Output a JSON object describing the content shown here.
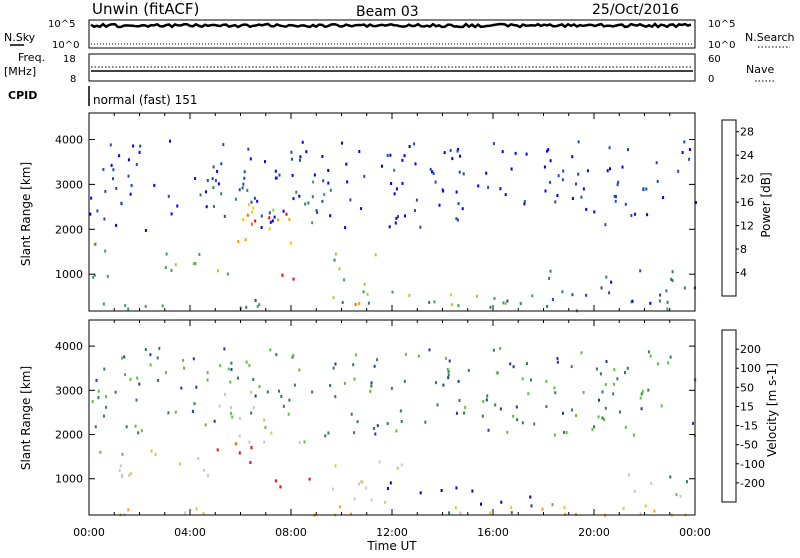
{
  "header": {
    "station": "Unwin (fitACF)",
    "beam": "Beam 03",
    "date": "25/Oct/2016"
  },
  "top_panels": {
    "nsky_label": "N.Sky",
    "nsearch_label": "N.Search",
    "noise_ticks_left": [
      "10^5",
      "10^0"
    ],
    "noise_ticks_right": [
      "10^5",
      "10^0"
    ],
    "freq_label_1": "Freq.",
    "freq_label_2": "[MHz]",
    "freq_ticks": [
      "18",
      "8"
    ],
    "nave_label": "Nave",
    "nave_ticks": [
      "60",
      "0"
    ],
    "cpid_label": "CPID",
    "cpid_text": "normal (fast) 151"
  },
  "colors": {
    "power_scale": [
      "#0000ff",
      "#1f4fa8",
      "#2f7f6f",
      "#3f9f5f",
      "#9fcf2f",
      "#efcf00",
      "#ff9f00",
      "#ff5f00",
      "#ff0000"
    ],
    "velocity_scale": [
      "#0000c0",
      "#1f3fa0",
      "#2f7f4f",
      "#5fbf3f",
      "#c8c8c8",
      "#e8c040",
      "#ff9f20",
      "#ff5000",
      "#ff0000"
    ]
  },
  "chart_data": [
    {
      "type": "heatmap",
      "name": "Power",
      "xlabel": "Time UT",
      "ylabel": "Slant Range [km]",
      "x_ticks": [
        "00:00",
        "04:00",
        "08:00",
        "12:00",
        "16:00",
        "20:00",
        "00:00"
      ],
      "y_ticks": [
        "1000",
        "2000",
        "3000",
        "4000"
      ],
      "xlim_hours": [
        0,
        24
      ],
      "ylim_km": [
        180,
        4590
      ],
      "colorbar_label": "Power [dB]",
      "colorbar_ticks": [
        "4",
        "8",
        "12",
        "16",
        "20",
        "24",
        "28"
      ],
      "colorbar_range": [
        0,
        30
      ],
      "regions": [
        {
          "t": [
            0.0,
            2.5
          ],
          "r": [
            1450,
            1800
          ],
          "level": 0.45
        },
        {
          "t": [
            2.5,
            5.0
          ],
          "r": [
            1050,
            1600
          ],
          "level": 0.45
        },
        {
          "t": [
            5.0,
            6.5
          ],
          "r": [
            1000,
            1300
          ],
          "level": 0.35
        },
        {
          "t": [
            0.0,
            4.0
          ],
          "r": [
            900,
            1200
          ],
          "level": 0.3
        },
        {
          "t": [
            4.5,
            7.0
          ],
          "r": [
            2500,
            3500
          ],
          "level": 0.25
        },
        {
          "t": [
            5.5,
            8.0
          ],
          "r": [
            1700,
            2600
          ],
          "level": 0.65
        },
        {
          "t": [
            6.0,
            8.3
          ],
          "r": [
            1800,
            2600
          ],
          "level": 0.85
        },
        {
          "t": [
            7.5,
            8.8
          ],
          "r": [
            750,
            1200
          ],
          "level": 0.95
        },
        {
          "t": [
            8.0,
            10.0
          ],
          "r": [
            2000,
            3200
          ],
          "level": 0.3
        },
        {
          "t": [
            9.5,
            12.0
          ],
          "r": [
            500,
            1500
          ],
          "level": 0.4
        },
        {
          "t": [
            10.5,
            11.5
          ],
          "r": [
            300,
            700
          ],
          "level": 0.8
        },
        {
          "t": [
            12.5,
            18.0
          ],
          "r": [
            300,
            700
          ],
          "level": 0.45
        },
        {
          "t": [
            0.0,
            24.0
          ],
          "r": [
            200,
            450
          ],
          "level": 0.3
        },
        {
          "t": [
            18.0,
            24.0
          ],
          "r": [
            300,
            1200
          ],
          "level": 0.2
        },
        {
          "t": [
            0.0,
            24.0
          ],
          "r": [
            2000,
            4000
          ],
          "level": 0.1
        }
      ]
    },
    {
      "type": "heatmap",
      "name": "Velocity",
      "xlabel": "Time UT",
      "ylabel": "Slant Range [km]",
      "x_ticks": [
        "00:00",
        "04:00",
        "08:00",
        "12:00",
        "16:00",
        "20:00",
        "00:00"
      ],
      "y_ticks": [
        "1000",
        "2000",
        "3000",
        "4000"
      ],
      "xlim_hours": [
        0,
        24
      ],
      "ylim_km": [
        180,
        4590
      ],
      "colorbar_label": "Velocity [m s-1]",
      "colorbar_ticks": [
        "200",
        "100",
        "50",
        "15",
        "-15",
        "-50",
        "-100",
        "-200"
      ],
      "colorbar_range": [
        -250,
        250
      ],
      "regions": [
        {
          "t": [
            0.0,
            5.0
          ],
          "r": [
            1050,
            1800
          ],
          "level": 0.5
        },
        {
          "t": [
            5.5,
            8.5
          ],
          "r": [
            1800,
            2700
          ],
          "level": 0.5
        },
        {
          "t": [
            4.5,
            6.5
          ],
          "r": [
            2400,
            3300
          ],
          "level": 0.45
        },
        {
          "t": [
            5.0,
            6.5
          ],
          "r": [
            1300,
            2100
          ],
          "level": 0.95
        },
        {
          "t": [
            7.3,
            8.8
          ],
          "r": [
            750,
            1200
          ],
          "level": 0.98
        },
        {
          "t": [
            9.5,
            12.5
          ],
          "r": [
            500,
            1500
          ],
          "level": 0.5
        },
        {
          "t": [
            11.0,
            12.0
          ],
          "r": [
            500,
            1000
          ],
          "level": 0.05
        },
        {
          "t": [
            13.0,
            15.5
          ],
          "r": [
            400,
            900
          ],
          "level": 0.03
        },
        {
          "t": [
            15.5,
            18.0
          ],
          "r": [
            500,
            750
          ],
          "level": 0.02
        },
        {
          "t": [
            13.5,
            18.5
          ],
          "r": [
            250,
            450
          ],
          "level": 0.25
        },
        {
          "t": [
            18.0,
            24.0
          ],
          "r": [
            200,
            400
          ],
          "level": 0.7
        },
        {
          "t": [
            0.0,
            24.0
          ],
          "r": [
            200,
            420
          ],
          "level": 0.65
        },
        {
          "t": [
            21.0,
            24.0
          ],
          "r": [
            600,
            1200
          ],
          "level": 0.45
        },
        {
          "t": [
            0.0,
            24.0
          ],
          "r": [
            2000,
            4000
          ],
          "level": 0.3
        }
      ]
    }
  ]
}
